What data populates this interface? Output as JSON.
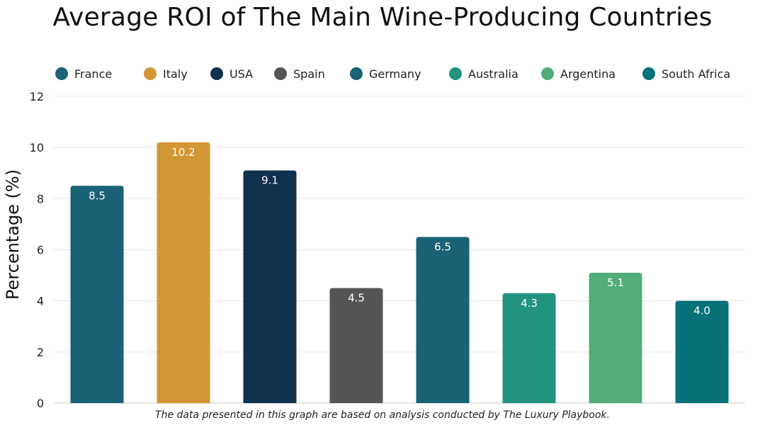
{
  "chart_data": {
    "type": "bar",
    "title": "Average ROI of The Main Wine-Producing Countries",
    "ylabel": "Percentage (%)",
    "xlabel": "",
    "categories": [
      "France",
      "Italy",
      "USA",
      "Spain",
      "Germany",
      "Australia",
      "Argentina",
      "South Africa"
    ],
    "values": [
      8.5,
      10.2,
      9.1,
      4.5,
      6.5,
      4.3,
      5.1,
      4.0
    ],
    "value_labels": [
      "8.5",
      "10.2",
      "9.1",
      "4.5",
      "6.5",
      "4.3",
      "5.1",
      "4.0"
    ],
    "colors": [
      "#1a6275",
      "#d29734",
      "#0f314e",
      "#555555",
      "#1a6275",
      "#22937f",
      "#52ad7b",
      "#08727a"
    ],
    "ylim": [
      0,
      12
    ],
    "yticks": [
      "0",
      "2",
      "4",
      "6",
      "8",
      "10",
      "12"
    ],
    "grid": true,
    "legend_position": "top",
    "footnote": "The data presented in this graph are based on analysis conducted by The Luxury Playbook."
  }
}
